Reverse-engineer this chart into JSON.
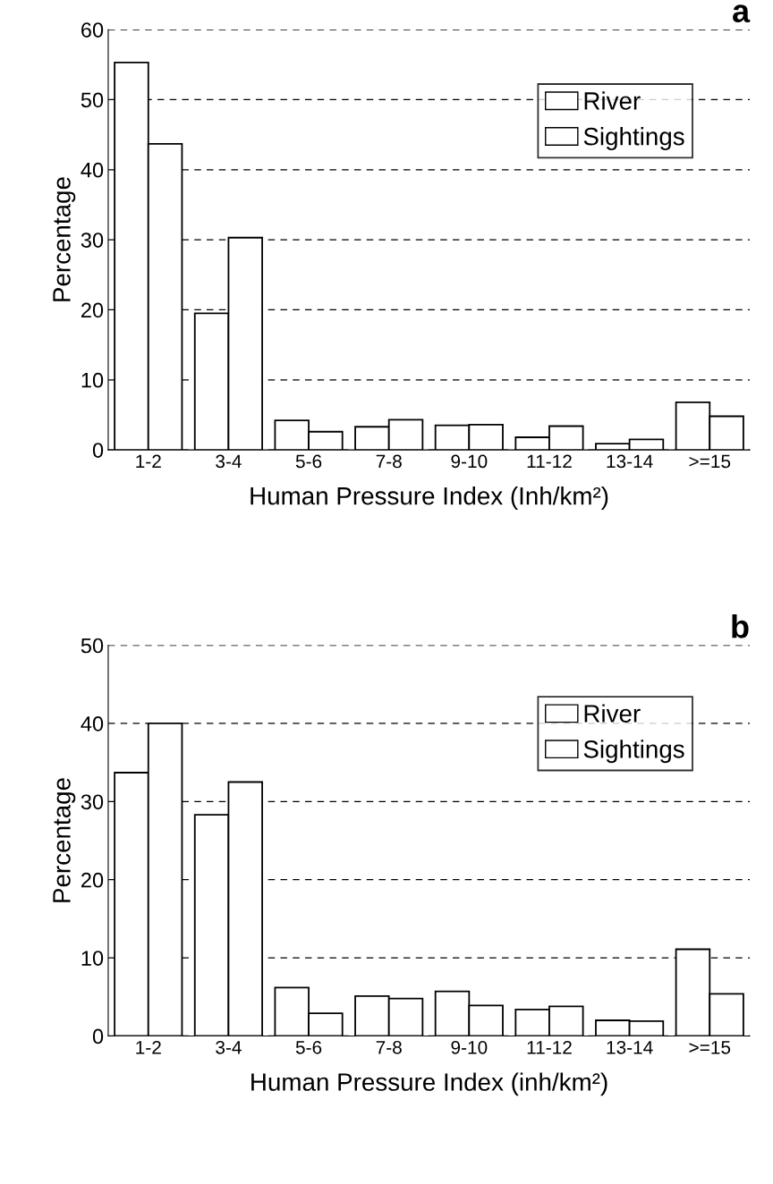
{
  "chart_data": [
    {
      "type": "bar",
      "title": "a",
      "xlabel": "Human Pressure Index (Inh/km²)",
      "ylabel": "Percentage",
      "categories": [
        "1-2",
        "3-4",
        "5-6",
        "7-8",
        "9-10",
        "11-12",
        "13-14",
        ">=15"
      ],
      "series": [
        {
          "name": "River",
          "color": "#ffffff",
          "values": [
            55.3,
            19.5,
            4.2,
            3.3,
            3.5,
            1.8,
            0.9,
            6.8
          ]
        },
        {
          "name": "Sightings",
          "color": "#ffffff",
          "values": [
            43.7,
            30.3,
            2.6,
            4.3,
            3.6,
            3.4,
            1.5,
            4.8
          ]
        }
      ],
      "ylim": [
        0,
        60
      ],
      "yticks": [
        0,
        10,
        20,
        30,
        40,
        50,
        60
      ],
      "grid": "y",
      "legend": "top right"
    },
    {
      "type": "bar",
      "title": "b",
      "xlabel": "Human Pressure Index (inh/km²)",
      "ylabel": "Percentage",
      "categories": [
        "1-2",
        "3-4",
        "5-6",
        "7-8",
        "9-10",
        "11-12",
        "13-14",
        ">=15"
      ],
      "series": [
        {
          "name": "River",
          "color": "#ffffff",
          "values": [
            33.7,
            28.3,
            6.2,
            5.1,
            5.7,
            3.4,
            2.0,
            11.1
          ]
        },
        {
          "name": "Sightings",
          "color": "#ffffff",
          "values": [
            40.0,
            32.5,
            2.9,
            4.8,
            3.9,
            3.8,
            1.9,
            5.4
          ]
        }
      ],
      "ylim": [
        0,
        50
      ],
      "yticks": [
        0,
        10,
        20,
        30,
        40,
        50
      ],
      "grid": "y",
      "legend": "top right"
    }
  ]
}
